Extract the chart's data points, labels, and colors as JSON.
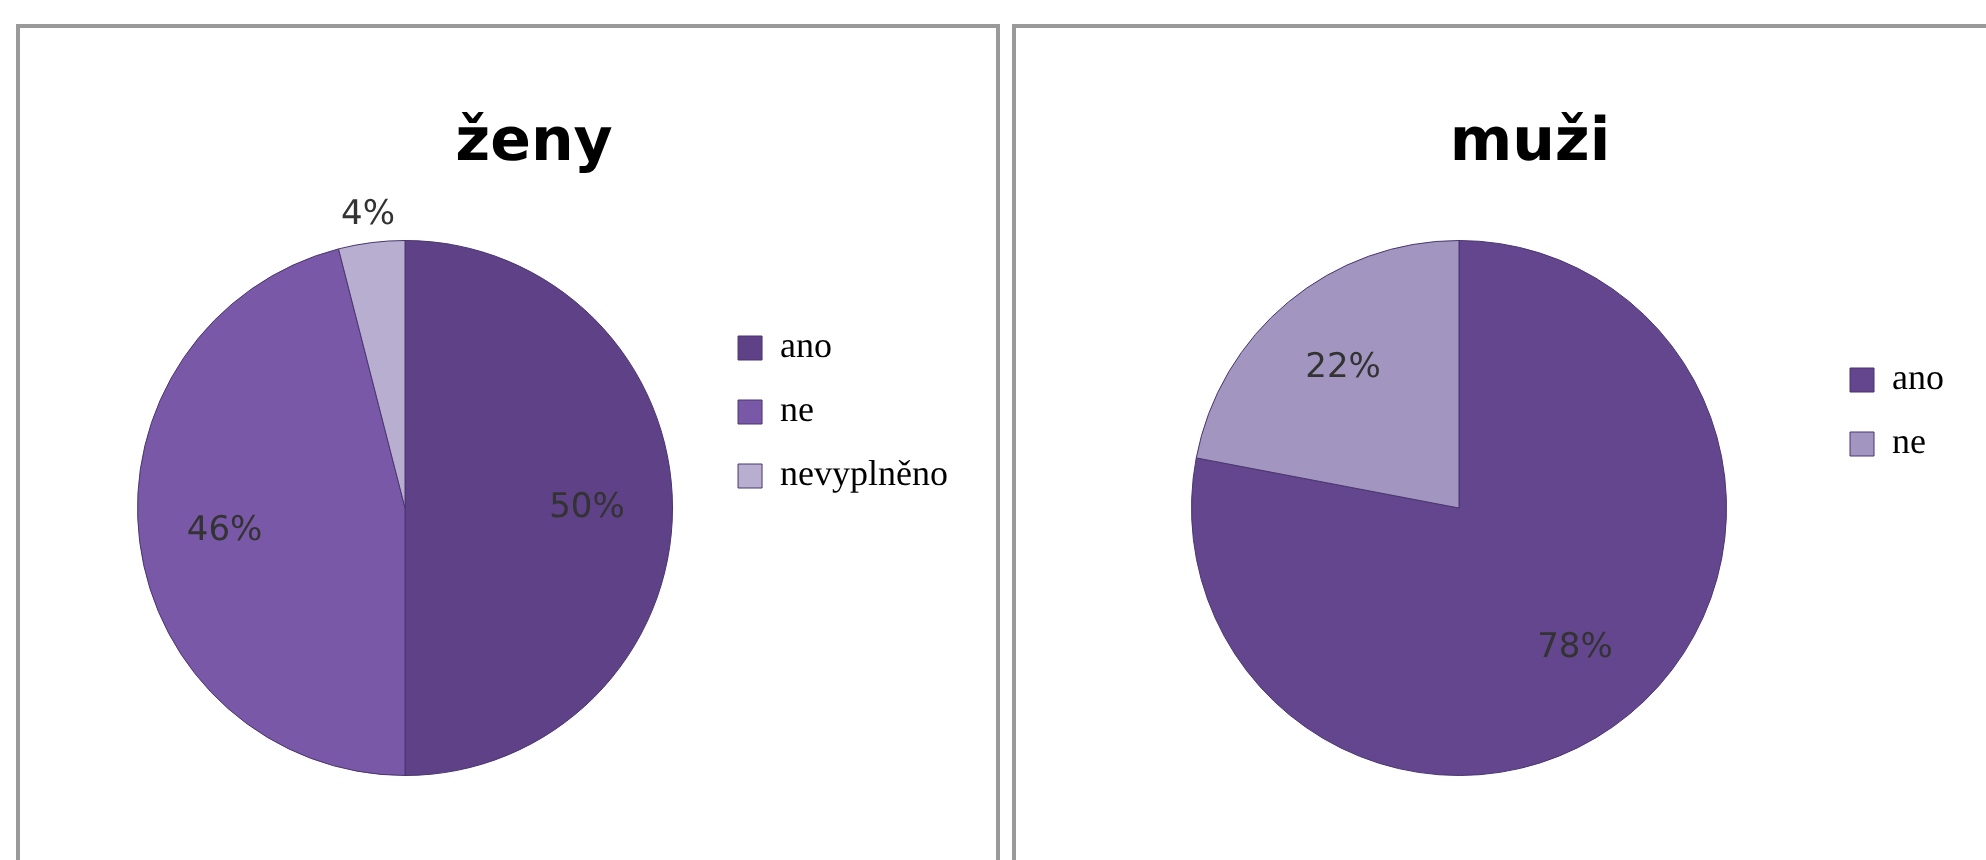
{
  "chart_data": [
    {
      "type": "pie",
      "title": "ženy",
      "categories": [
        "ano",
        "ne",
        "nevyplněno"
      ],
      "values": [
        50,
        46,
        4
      ],
      "colors": [
        "#5e4187",
        "#7a58a8",
        "#b8aed0"
      ],
      "value_labels": [
        "50%",
        "46%",
        "4%"
      ],
      "legend": "right"
    },
    {
      "type": "pie",
      "title": "muži",
      "categories": [
        "ano",
        "ne"
      ],
      "values": [
        78,
        22
      ],
      "colors": [
        "#64468f",
        "#a296c0"
      ],
      "value_labels": [
        "78%",
        "22%"
      ],
      "legend": "right"
    }
  ]
}
